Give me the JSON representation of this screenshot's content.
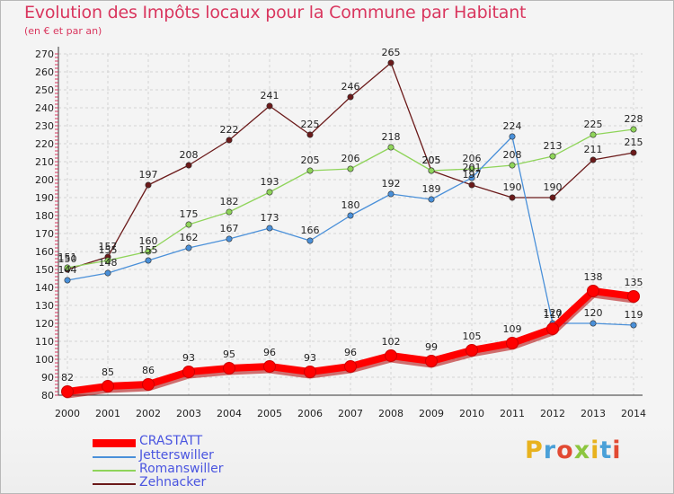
{
  "title": "Evolution des Impôts locaux pour la Commune par Habitant",
  "subtitle": "(en € et par an)",
  "logo_text": "Proxiti",
  "logo_colors": [
    "#e8b21e",
    "#4aa0d8",
    "#e24a33",
    "#8cc63f",
    "#e8b21e",
    "#4aa0d8",
    "#e24a33"
  ],
  "chart_data": {
    "type": "line",
    "title": "Evolution des Impôts locaux pour la Commune par Habitant",
    "subtitle": "(en € et par an)",
    "xlabel": "",
    "ylabel": "",
    "x": [
      "2000",
      "2001",
      "2002",
      "2003",
      "2004",
      "2005",
      "2006",
      "2007",
      "2008",
      "2009",
      "2010",
      "2011",
      "2012",
      "2013",
      "2014"
    ],
    "ylim": [
      80,
      270
    ],
    "yticks": [
      80,
      90,
      100,
      110,
      120,
      130,
      140,
      150,
      160,
      170,
      180,
      190,
      200,
      210,
      220,
      230,
      240,
      250,
      260,
      270
    ],
    "grid": true,
    "legend_position": "bottom-left",
    "series": [
      {
        "name": "Zehnacker",
        "color": "#6b1a1a",
        "values": [
          150,
          157,
          197,
          208,
          222,
          241,
          225,
          246,
          265,
          205,
          197,
          190,
          190,
          211,
          215
        ]
      },
      {
        "name": "Romanswiller",
        "color": "#8fd45a",
        "values": [
          151,
          155,
          160,
          175,
          182,
          193,
          205,
          206,
          218,
          205,
          206,
          208,
          213,
          225,
          228
        ]
      },
      {
        "name": "Jetterswiller",
        "color": "#4a90d9",
        "values": [
          144,
          148,
          155,
          162,
          167,
          173,
          166,
          180,
          192,
          189,
          201,
          224,
          120,
          120,
          119
        ]
      },
      {
        "name": "CRASTATT",
        "color": "#ff0000",
        "values": [
          82,
          85,
          86,
          93,
          95,
          96,
          93,
          96,
          102,
          99,
          105,
          109,
          117,
          138,
          135
        ]
      }
    ],
    "legend_order": [
      "CRASTATT",
      "Jetterswiller",
      "Romanswiller",
      "Zehnacker"
    ]
  }
}
